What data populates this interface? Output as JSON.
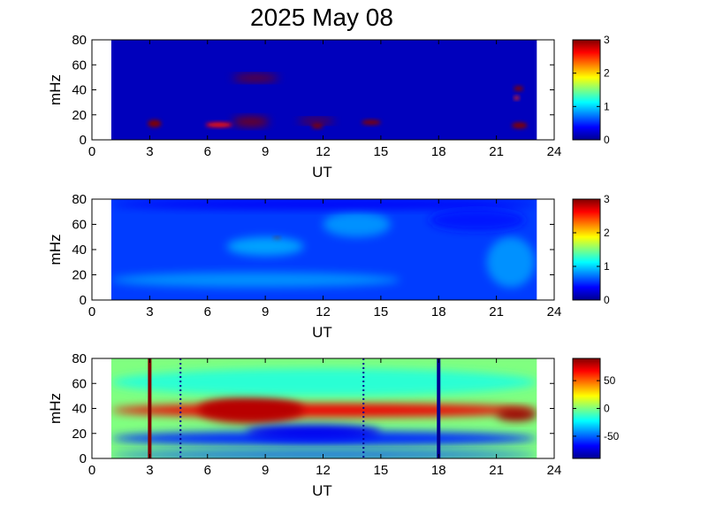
{
  "title": "2025 May 08",
  "chart_data": [
    {
      "type": "heatmap",
      "xlabel": "UT",
      "ylabel": "mHz",
      "xlim": [
        0,
        24
      ],
      "ylim": [
        0,
        80
      ],
      "xticks": [
        0,
        3,
        6,
        9,
        12,
        15,
        18,
        21,
        24
      ],
      "yticks": [
        0,
        20,
        40,
        60,
        80
      ],
      "data_xrange": [
        1.0,
        23.1
      ],
      "clim": [
        0,
        3
      ],
      "colorbar_ticks": [
        0,
        1,
        2,
        3
      ],
      "background_value": 0.15,
      "blobs": [
        {
          "x0": 7.3,
          "x1": 9.7,
          "y0": 47,
          "y1": 52,
          "value": 3.2
        },
        {
          "x0": 2.9,
          "x1": 3.6,
          "y0": 10,
          "y1": 16,
          "value": 3.2
        },
        {
          "x0": 5.9,
          "x1": 7.3,
          "y0": 10,
          "y1": 14,
          "value": 2.6
        },
        {
          "x0": 7.3,
          "x1": 9.2,
          "y0": 11,
          "y1": 18,
          "value": 3.2
        },
        {
          "x0": 10.7,
          "x1": 12.6,
          "y0": 13,
          "y1": 17,
          "value": 3.0
        },
        {
          "x0": 11.4,
          "x1": 12.0,
          "y0": 9,
          "y1": 13,
          "value": 3.0
        },
        {
          "x0": 14.0,
          "x1": 15.0,
          "y0": 12,
          "y1": 16,
          "value": 3.0
        },
        {
          "x0": 21.9,
          "x1": 22.4,
          "y0": 39,
          "y1": 43,
          "value": 3.0
        },
        {
          "x0": 21.9,
          "x1": 22.2,
          "y0": 32,
          "y1": 35,
          "value": 2.5
        },
        {
          "x0": 21.8,
          "x1": 22.6,
          "y0": 9,
          "y1": 14,
          "value": 3.0
        }
      ]
    },
    {
      "type": "heatmap",
      "xlabel": "UT",
      "ylabel": "mHz",
      "xlim": [
        0,
        24
      ],
      "ylim": [
        0,
        80
      ],
      "xticks": [
        0,
        3,
        6,
        9,
        12,
        15,
        18,
        21,
        24
      ],
      "yticks": [
        0,
        20,
        40,
        60,
        80
      ],
      "data_xrange": [
        1.0,
        23.1
      ],
      "clim": [
        0,
        3
      ],
      "colorbar_ticks": [
        0,
        1,
        2,
        3
      ],
      "background_value": 0.55,
      "blobs": [
        {
          "x0": 9.4,
          "x1": 9.8,
          "y0": 47,
          "y1": 50,
          "value": 3.0
        },
        {
          "x0": 7.0,
          "x1": 11.0,
          "y0": 35,
          "y1": 50,
          "value": 0.85
        },
        {
          "x0": 1.0,
          "x1": 16.0,
          "y0": 10,
          "y1": 22,
          "value": 0.8
        },
        {
          "x0": 12.0,
          "x1": 15.5,
          "y0": 50,
          "y1": 70,
          "value": 0.8
        },
        {
          "x0": 20.5,
          "x1": 23.0,
          "y0": 10,
          "y1": 50,
          "value": 0.8
        },
        {
          "x0": 1.0,
          "x1": 23.1,
          "y0": 72,
          "y1": 80,
          "value": 0.35
        },
        {
          "x0": 17.5,
          "x1": 22.5,
          "y0": 55,
          "y1": 72,
          "value": 0.45
        }
      ]
    },
    {
      "type": "heatmap",
      "xlabel": "UT",
      "ylabel": "mHz",
      "xlim": [
        0,
        24
      ],
      "ylim": [
        0,
        80
      ],
      "xticks": [
        0,
        3,
        6,
        9,
        12,
        15,
        18,
        21,
        24
      ],
      "yticks": [
        0,
        20,
        40,
        60,
        80
      ],
      "data_xrange": [
        1.0,
        23.1
      ],
      "clim": [
        -90,
        90
      ],
      "colorbar_ticks": [
        50,
        0,
        -50
      ],
      "colorbar_ticklabels": [
        "50",
        "0",
        "-50"
      ],
      "background_value": 0,
      "blobs": [
        {
          "x0": 1.0,
          "x1": 23.1,
          "y0": 33,
          "y1": 44,
          "value": 70
        },
        {
          "x0": 5.5,
          "x1": 11.0,
          "y0": 28,
          "y1": 50,
          "value": 80
        },
        {
          "x0": 1.0,
          "x1": 23.1,
          "y0": 10,
          "y1": 22,
          "value": -60
        },
        {
          "x0": 8.0,
          "x1": 15.0,
          "y0": 15,
          "y1": 27,
          "value": -70
        },
        {
          "x0": 21.0,
          "x1": 23.1,
          "y0": 30,
          "y1": 40,
          "value": 85
        },
        {
          "x0": 1.0,
          "x1": 23.1,
          "y0": 0,
          "y1": 6,
          "value": -55
        },
        {
          "x0": 1.0,
          "x1": 23.1,
          "y0": 50,
          "y1": 72,
          "value": -15
        }
      ],
      "vertical_lines": [
        {
          "x": 3.0,
          "value": 90,
          "style": "solid"
        },
        {
          "x": 18.0,
          "value": -90,
          "style": "solid"
        },
        {
          "x": 4.6,
          "value": -90,
          "style": "dotted"
        },
        {
          "x": 14.1,
          "value": -90,
          "style": "dotted"
        }
      ]
    }
  ]
}
